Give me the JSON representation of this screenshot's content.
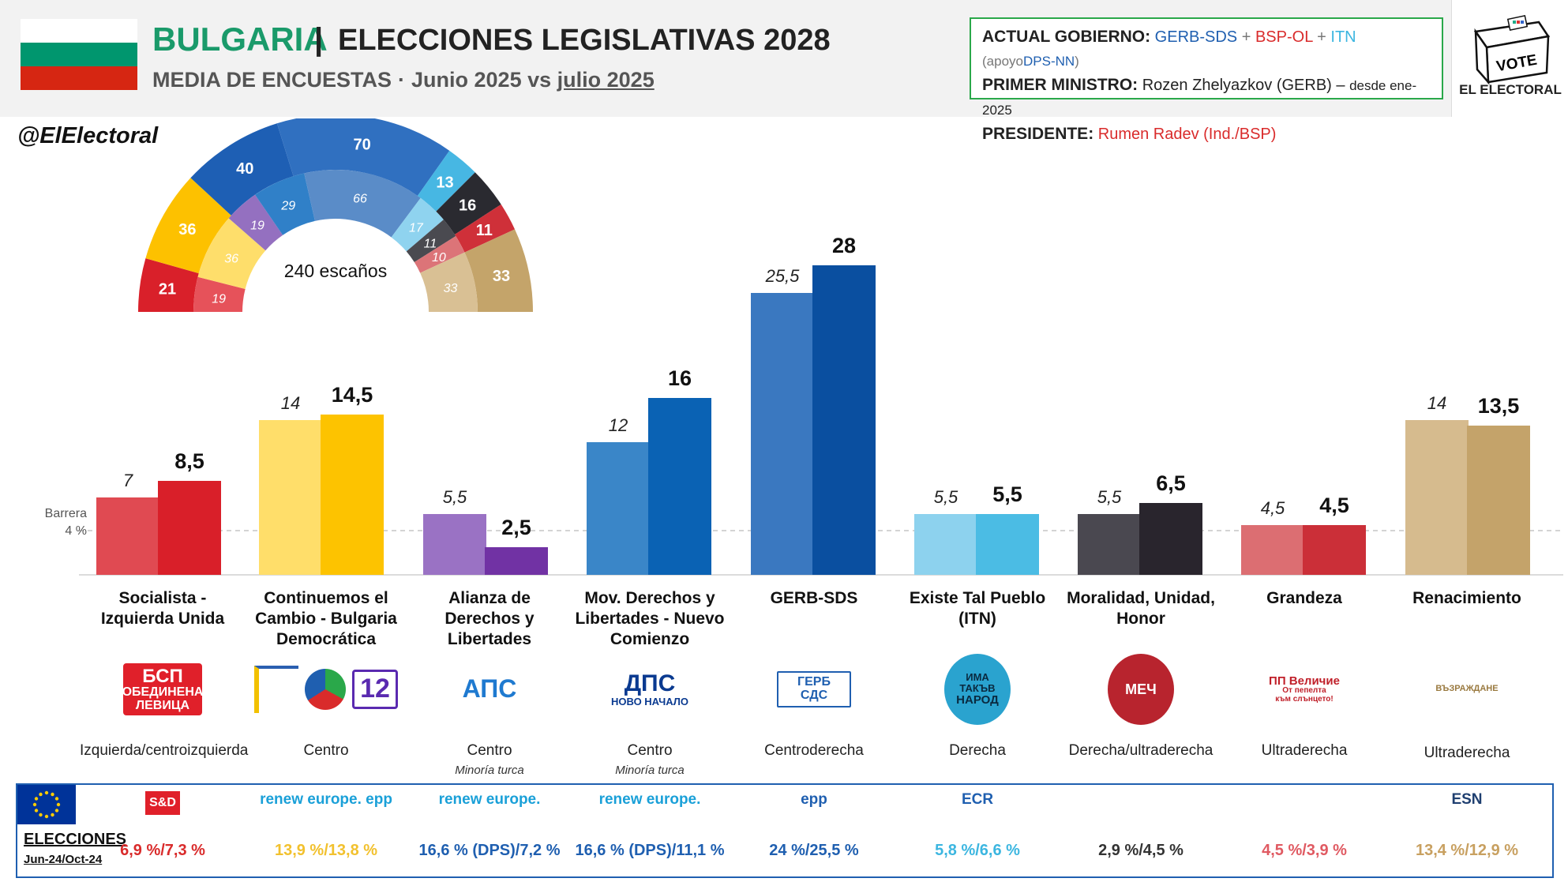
{
  "header": {
    "country": "BULGARIA",
    "separator": "|",
    "title": "ELECCIONES LEGISLATIVAS 2028",
    "subtitle_main": "MEDIA DE ENCUESTAS",
    "subtitle_dot": "·",
    "subtitle_from": "Junio 2025 vs",
    "subtitle_to": "julio 2025",
    "flag_colors": [
      "#ffffff",
      "#00966e",
      "#d62612"
    ]
  },
  "government": {
    "gov_label": "ACTUAL GOBIERNO:",
    "gov_p1": "GERB-SDS",
    "gov_plus1": "+",
    "gov_p2": "BSP-OL",
    "gov_plus2": "+",
    "gov_p3": "ITN",
    "gov_support": "(apoyo",
    "gov_p4": "DPS-NN",
    "gov_close": ")",
    "pm_label": "PRIMER MINISTRO:",
    "pm_value": "Rozen Zhelyazkov (GERB) –",
    "pm_since": "desde ene-2025",
    "pres_label": "PRESIDENTE:",
    "pres_value": "Rumen Radev (Ind./BSP)"
  },
  "brand": {
    "vote": "VOTE",
    "name": "EL ELECTORAL",
    "handle": "@ElElectoral"
  },
  "hemicycle": {
    "center_label": "240 escaños",
    "outer": [
      {
        "seats": 21,
        "color": "#d9202a"
      },
      {
        "seats": 36,
        "color": "#fdc100"
      },
      {
        "seats": 40,
        "color": "#1e5fb4"
      },
      {
        "seats": 70,
        "color": "#3070c0"
      },
      {
        "seats": 13,
        "color": "#47b7e3"
      },
      {
        "seats": 16,
        "color": "#2a2a30"
      },
      {
        "seats": 11,
        "color": "#cf3039"
      },
      {
        "seats": 33,
        "color": "#c4a46a"
      }
    ],
    "inner": [
      {
        "seats": 19,
        "color": "#e6525a"
      },
      {
        "seats": 36,
        "color": "#fede6b"
      },
      {
        "seats": 19,
        "color": "#9470c0"
      },
      {
        "seats": 29,
        "color": "#3080c8"
      },
      {
        "seats": 66,
        "color": "#5a8cc8"
      },
      {
        "seats": 17,
        "color": "#8fd3ef"
      },
      {
        "seats": 11,
        "color": "#4a4a50"
      },
      {
        "seats": 10,
        "color": "#dc7478"
      },
      {
        "seats": 33,
        "color": "#d9c094"
      }
    ]
  },
  "chart_data": {
    "type": "bar",
    "categories": [
      "Socialista - Izquierda Unida",
      "Continuemos el Cambio - Bulgaria Democrática",
      "Alianza de Derechos y Libertades",
      "Mov. Derechos y Libertades - Nuevo Comienzo",
      "GERB-SDS",
      "Existe Tal Pueblo (ITN)",
      "Moralidad, Unidad, Honor",
      "Grandeza",
      "Renacimiento"
    ],
    "series": [
      {
        "values": [
          7,
          14,
          5.5,
          12,
          25.5,
          5.5,
          5.5,
          4.5,
          14
        ],
        "labels": [
          "7",
          "14",
          "5,5",
          "12",
          "25,5",
          "5,5",
          "5,5",
          "4,5",
          "14"
        ]
      },
      {
        "values": [
          8.5,
          14.5,
          2.5,
          16,
          28,
          5.5,
          6.5,
          4.5,
          13.5
        ],
        "labels": [
          "8,5",
          "14,5",
          "2,5",
          "16",
          "28",
          "5,5",
          "6,5",
          "4,5",
          "13,5"
        ]
      }
    ],
    "colors_prev": [
      "#e04a52",
      "#ffde6a",
      "#9a72c4",
      "#3a86c8",
      "#3a78c0",
      "#8dd2ee",
      "#4a4850",
      "#dc6e72",
      "#d6bb8e"
    ],
    "colors_curr": [
      "#d91f29",
      "#fdc300",
      "#7132a4",
      "#0a62b4",
      "#0a4fa0",
      "#4bbce4",
      "#29252d",
      "#cb2f38",
      "#c4a36a"
    ],
    "ylim": [
      0,
      30
    ],
    "threshold": 4,
    "threshold_label": [
      "Barrera",
      "4 %"
    ],
    "title": ""
  },
  "parties": [
    {
      "name": [
        "Socialista -",
        "Izquierda Unida"
      ],
      "ideology": "Izquierda/centroizquierda",
      "sub": "",
      "eu_group": "S&D",
      "result": "6,9 %/7,3 %",
      "result_color": "#d92b2b",
      "logo_text": [
        "БСП",
        "ОБЕДИНЕНА",
        "ЛЕВИЦА"
      ]
    },
    {
      "name": [
        "Continuemos el",
        "Cambio - Bulgaria",
        "Democrática"
      ],
      "ideology": "Centro",
      "sub": "",
      "eu_group": "renew europe. epp",
      "result": "13,9 %/13,8 %",
      "result_color": "#f2c12e",
      "logo_text": [
        "12"
      ]
    },
    {
      "name": [
        "Alianza de",
        "Derechos y",
        "Libertades"
      ],
      "ideology": "Centro",
      "sub": "Minoría turca",
      "eu_group": "renew europe.",
      "result": "16,6 % (DPS)/7,2 %",
      "result_color": "#1f5fb0",
      "logo_text": [
        "АПС"
      ]
    },
    {
      "name": [
        "Mov. Derechos y",
        "Libertades - Nuevo",
        "Comienzo"
      ],
      "ideology": "Centro",
      "sub": "Minoría turca",
      "eu_group": "renew europe.",
      "result": "16,6 % (DPS)/11,1 %",
      "result_color": "#1f5fb0",
      "logo_text": [
        "ДПС",
        "НОВО НАЧАЛО"
      ]
    },
    {
      "name": [
        "GERB-SDS"
      ],
      "ideology": "Centroderecha",
      "sub": "",
      "eu_group": "epp",
      "result": "24 %/25,5 %",
      "result_color": "#1f5fb0",
      "logo_text": [
        "ГЕРБ",
        "СДС"
      ]
    },
    {
      "name": [
        "Existe Tal Pueblo",
        "(ITN)"
      ],
      "ideology": "Derecha",
      "sub": "",
      "eu_group": "ECR",
      "result": "5,8 %/6,6 %",
      "result_color": "#3cb6e0",
      "logo_text": [
        "ИМА",
        "ТАКЪВ",
        "НАРОД"
      ]
    },
    {
      "name": [
        "Moralidad, Unidad,",
        "Honor"
      ],
      "ideology": "Derecha/ultraderecha",
      "sub": "",
      "eu_group": "",
      "result": "2,9 %/4,5 %",
      "result_color": "#333333",
      "logo_text": [
        "МЕЧ"
      ]
    },
    {
      "name": [
        "Grandeza"
      ],
      "ideology": "Ultraderecha",
      "sub": "",
      "eu_group": "",
      "result": "4,5 %/3,9 %",
      "result_color": "#e05a62",
      "logo_text": [
        "ПП Величие",
        "От пепелта",
        "към слънцето!"
      ]
    },
    {
      "name": [
        "Renacimiento"
      ],
      "ideology": "Ultraderecha",
      "sub": "",
      "eu_group": "ESN",
      "result": "13,4 %/12,9 %",
      "result_color": "#c8a060",
      "logo_text": [
        "ВЪЗРАЖДАНЕ"
      ]
    }
  ],
  "elections": {
    "label": "ELECCIONES",
    "dates": "Jun-24/Oct-24"
  }
}
